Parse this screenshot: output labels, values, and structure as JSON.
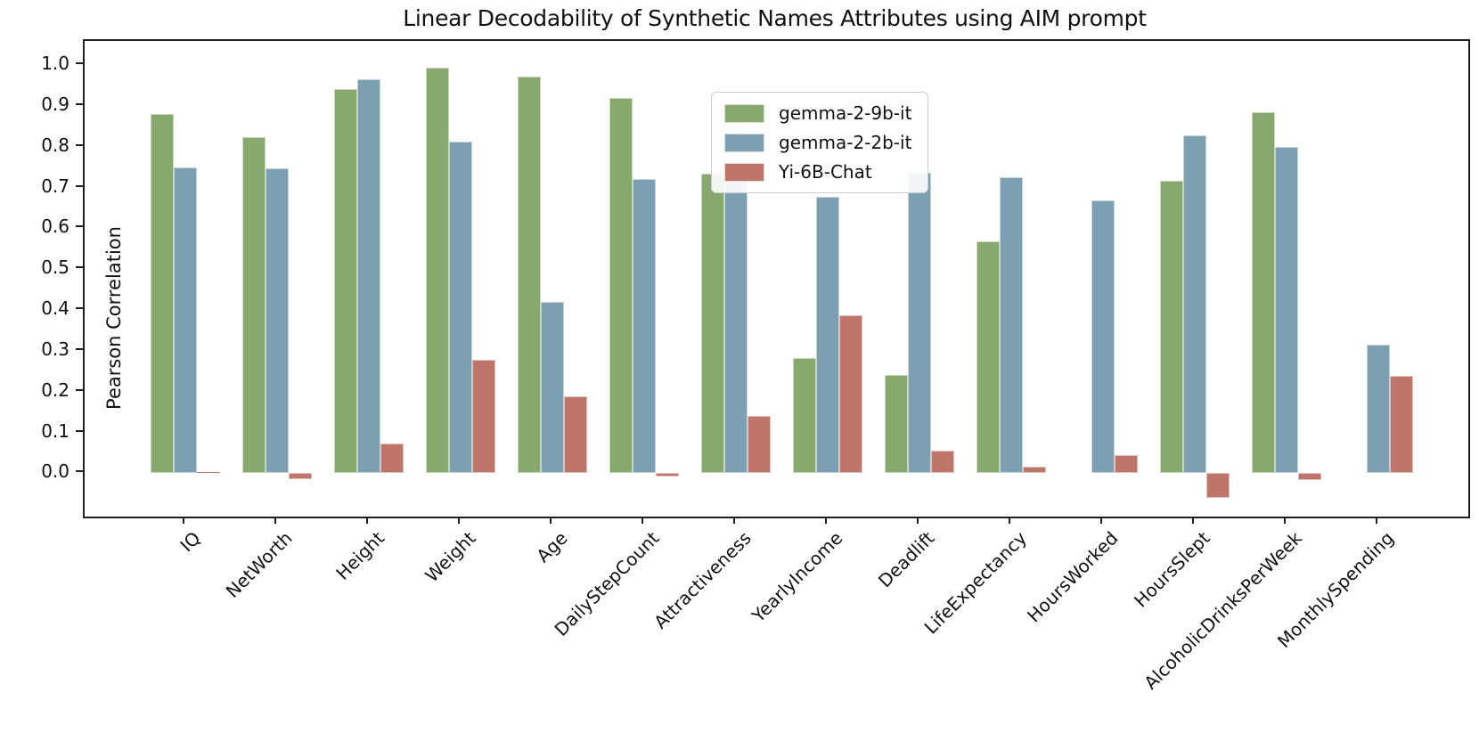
{
  "chart_data": {
    "type": "bar",
    "title": "Linear Decodability of Synthetic Names Attributes using AIM prompt",
    "xlabel": "",
    "ylabel": "Pearson Correlation",
    "categories": [
      "IQ",
      "NetWorth",
      "Height",
      "Weight",
      "Age",
      "DailyStepCount",
      "Attractiveness",
      "YearlyIncome",
      "Deadlift",
      "LifeExpectancy",
      "HoursWorked",
      "HoursSlept",
      "AlcoholicDrinksPerWeek",
      "MonthlySpending"
    ],
    "series": [
      {
        "name": "gemma-2-9b-it",
        "color": "#87a96e",
        "values": [
          0.88,
          0.823,
          0.942,
          0.993,
          0.971,
          0.919,
          0.733,
          0.283,
          0.24,
          0.568,
          null,
          0.716,
          0.884,
          null
        ]
      },
      {
        "name": "gemma-2-2b-it",
        "color": "#7ca0b1",
        "values": [
          0.75,
          0.748,
          0.965,
          0.813,
          0.419,
          0.72,
          0.743,
          0.677,
          0.736,
          0.726,
          0.669,
          0.827,
          0.8,
          0.315
        ]
      },
      {
        "name": "Yi-6B-Chat",
        "color": "#c0756a",
        "values": [
          0.002,
          -0.015,
          0.072,
          0.279,
          0.188,
          -0.008,
          0.141,
          0.387,
          0.055,
          0.016,
          0.045,
          -0.061,
          -0.017,
          0.239
        ]
      }
    ],
    "yticks": [
      1.0,
      0.9,
      0.8,
      0.7,
      0.6,
      0.5,
      0.4,
      0.3,
      0.2,
      0.1,
      0.0
    ],
    "ylim": [
      -0.106,
      1.059
    ],
    "grid": false,
    "legend_position": "upper center-left"
  }
}
